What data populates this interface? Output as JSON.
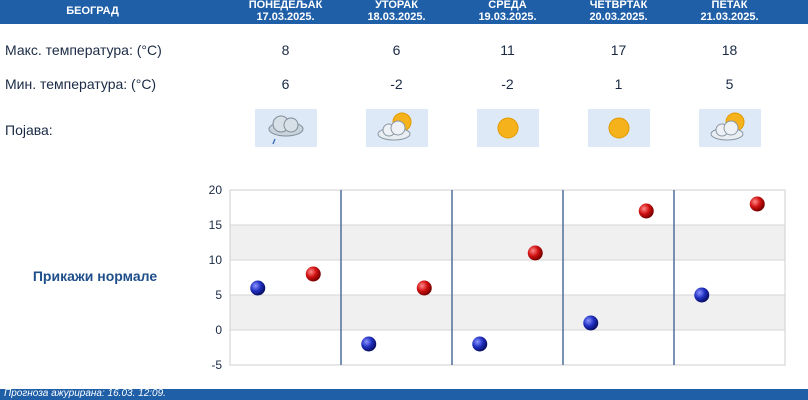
{
  "header": {
    "city": "БЕОГРАД"
  },
  "days": [
    {
      "name": "ПОНЕДЕЉАК",
      "date": "17.03.2025.",
      "max": "8",
      "min": "6",
      "icon": "rain-cloud-icon"
    },
    {
      "name": "УТОРАК",
      "date": "18.03.2025.",
      "max": "6",
      "min": "-2",
      "icon": "partly-cloudy-icon"
    },
    {
      "name": "СРЕДА",
      "date": "19.03.2025.",
      "max": "11",
      "min": "-2",
      "icon": "sun-icon"
    },
    {
      "name": "ЧЕТВРТАК",
      "date": "20.03.2025.",
      "max": "17",
      "min": "1",
      "icon": "sun-icon"
    },
    {
      "name": "ПЕТАК",
      "date": "21.03.2025.",
      "max": "18",
      "min": "5",
      "icon": "partly-cloudy-icon"
    }
  ],
  "labels": {
    "max": "Макс. температура: (°C)",
    "min": "Мин. температура: (°C)",
    "phenomenon": "Појава:",
    "normals": "Прикажи нормале"
  },
  "chart_data": {
    "type": "scatter",
    "ylim": [
      -5,
      20
    ],
    "yticks": [
      "20",
      "15",
      "10",
      "5",
      "0",
      "-5"
    ],
    "categories": [
      "ПОНЕДЕЉАК",
      "УТОРАК",
      "СРЕДА",
      "ЧЕТВРТАК",
      "ПЕТАК"
    ],
    "series": [
      {
        "role": "min",
        "color": "#1f2fc0",
        "values": [
          6,
          -2,
          -2,
          1,
          5
        ]
      },
      {
        "role": "max",
        "color": "#d01010",
        "values": [
          8,
          6,
          11,
          17,
          18
        ]
      }
    ],
    "grid": true
  },
  "colors": {
    "header_bg": "#1f5fa8",
    "icon_bg": "#dde9f6"
  },
  "footer": {
    "updated": "Прогноза ажурирана:  16.03. 12:09."
  }
}
